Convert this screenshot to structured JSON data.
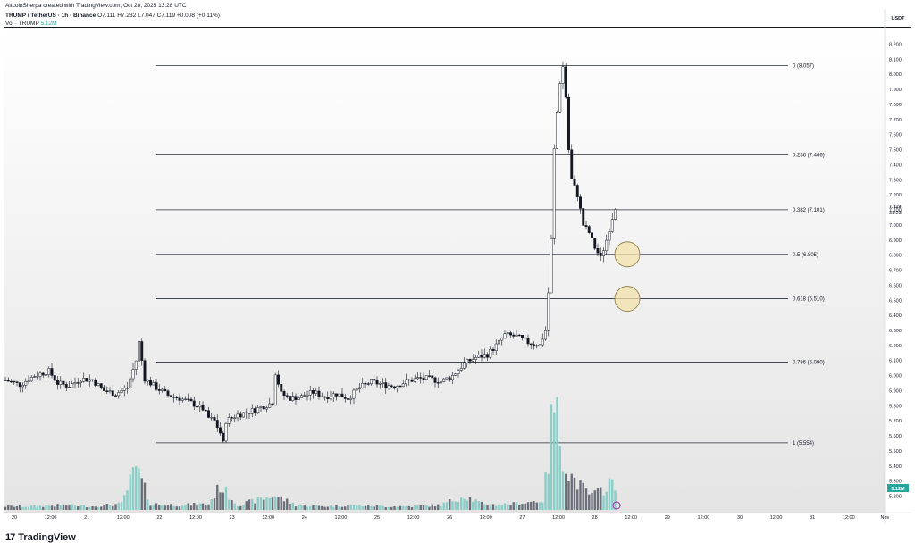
{
  "header": {
    "credit": "AltcoinSherpa created with TradingView.com, Oct 28, 2025 13:28 UTC",
    "symbol": "TRUMP / TetherUS · 1h · Binance",
    "ohlc": "O7.111  H7.232  L7.047  C7.119  +0.008 (+0.11%)",
    "vol_label": "Vol · TRUMP",
    "vol_value": "5.12M"
  },
  "footer": {
    "brand": "TradingView"
  },
  "chart_data": {
    "type": "candlestick",
    "currency_label": "USDT",
    "last_price_label": "7.119",
    "countdown_label": "31:23",
    "volume_tag": "5.12M",
    "y_ticks": [
      "8.200",
      "8.100",
      "8.000",
      "7.900",
      "7.800",
      "7.700",
      "7.600",
      "7.500",
      "7.400",
      "7.300",
      "7.200",
      "7.100",
      "7.000",
      "6.900",
      "6.800",
      "6.700",
      "6.600",
      "6.500",
      "6.400",
      "6.300",
      "6.200",
      "6.100",
      "6.000",
      "5.900",
      "5.800",
      "5.700",
      "5.600",
      "5.500",
      "5.400",
      "5.300",
      "5.200"
    ],
    "x_ticks": [
      "20",
      "12:00",
      "21",
      "12:00",
      "22",
      "12:00",
      "23",
      "12:00",
      "24",
      "12:00",
      "25",
      "12:00",
      "26",
      "12:00",
      "27",
      "12:00",
      "28",
      "12:00",
      "29",
      "12:00",
      "30",
      "12:00",
      "31",
      "12:00",
      "Nov"
    ],
    "ylim": [
      5.15,
      8.28
    ],
    "fib_levels": [
      {
        "label": "0 (8.057)",
        "value": 8.057
      },
      {
        "label": "0.236 (7.466)",
        "value": 7.466
      },
      {
        "label": "0.382 (7.101)",
        "value": 7.101
      },
      {
        "label": "0.5 (6.805)",
        "value": 6.805
      },
      {
        "label": "0.618 (6.510)",
        "value": 6.51
      },
      {
        "label": "0.786 (6.090)",
        "value": 6.09
      },
      {
        "label": "1 (5.554)",
        "value": 5.554
      }
    ],
    "highlight_levels": [
      6.805,
      6.51
    ],
    "price_path": [
      [
        0,
        5.97
      ],
      [
        5,
        5.94
      ],
      [
        10,
        6.0
      ],
      [
        15,
        6.03
      ],
      [
        18,
        5.95
      ],
      [
        22,
        5.93
      ],
      [
        26,
        5.98
      ],
      [
        30,
        5.97
      ],
      [
        34,
        5.9
      ],
      [
        38,
        5.88
      ],
      [
        42,
        5.92
      ],
      [
        45,
        6.1
      ],
      [
        46,
        6.22
      ],
      [
        48,
        5.98
      ],
      [
        52,
        5.92
      ],
      [
        56,
        5.87
      ],
      [
        60,
        5.85
      ],
      [
        64,
        5.82
      ],
      [
        68,
        5.78
      ],
      [
        70,
        5.72
      ],
      [
        72,
        5.7
      ],
      [
        74,
        5.62
      ],
      [
        75,
        5.55
      ],
      [
        76,
        5.7
      ],
      [
        80,
        5.74
      ],
      [
        84,
        5.76
      ],
      [
        88,
        5.79
      ],
      [
        92,
        5.82
      ],
      [
        93,
        6.02
      ],
      [
        95,
        5.88
      ],
      [
        98,
        5.85
      ],
      [
        102,
        5.86
      ],
      [
        106,
        5.89
      ],
      [
        110,
        5.86
      ],
      [
        114,
        5.88
      ],
      [
        118,
        5.85
      ],
      [
        122,
        5.92
      ],
      [
        126,
        5.96
      ],
      [
        130,
        5.94
      ],
      [
        134,
        5.93
      ],
      [
        138,
        5.96
      ],
      [
        142,
        5.98
      ],
      [
        146,
        5.98
      ],
      [
        150,
        5.96
      ],
      [
        154,
        6.0
      ],
      [
        156,
        6.04
      ],
      [
        158,
        6.08
      ],
      [
        162,
        6.12
      ],
      [
        166,
        6.14
      ],
      [
        170,
        6.22
      ],
      [
        172,
        6.27
      ],
      [
        176,
        6.26
      ],
      [
        180,
        6.22
      ],
      [
        184,
        6.2
      ],
      [
        186,
        6.3
      ],
      [
        187,
        6.55
      ],
      [
        188,
        6.9
      ],
      [
        189,
        7.5
      ],
      [
        190,
        7.75
      ],
      [
        191,
        7.95
      ],
      [
        192,
        8.05
      ],
      [
        193,
        7.85
      ],
      [
        194,
        7.5
      ],
      [
        195,
        7.3
      ],
      [
        197,
        7.2
      ],
      [
        199,
        7.0
      ],
      [
        201,
        6.95
      ],
      [
        203,
        6.85
      ],
      [
        205,
        6.78
      ],
      [
        207,
        6.9
      ],
      [
        209,
        7.05
      ],
      [
        210,
        7.12
      ]
    ],
    "volume_path": [
      [
        0,
        0.03
      ],
      [
        10,
        0.03
      ],
      [
        20,
        0.04
      ],
      [
        30,
        0.03
      ],
      [
        40,
        0.05
      ],
      [
        45,
        0.35
      ],
      [
        50,
        0.05
      ],
      [
        60,
        0.04
      ],
      [
        70,
        0.05
      ],
      [
        74,
        0.2
      ],
      [
        80,
        0.04
      ],
      [
        93,
        0.12
      ],
      [
        100,
        0.04
      ],
      [
        110,
        0.03
      ],
      [
        120,
        0.04
      ],
      [
        130,
        0.03
      ],
      [
        140,
        0.03
      ],
      [
        150,
        0.04
      ],
      [
        158,
        0.12
      ],
      [
        165,
        0.04
      ],
      [
        175,
        0.05
      ],
      [
        185,
        0.08
      ],
      [
        187,
        0.4
      ],
      [
        188,
        0.7
      ],
      [
        189,
        0.9
      ],
      [
        190,
        0.75
      ],
      [
        191,
        0.6
      ],
      [
        192,
        0.48
      ],
      [
        194,
        0.3
      ],
      [
        196,
        0.25
      ],
      [
        198,
        0.2
      ],
      [
        200,
        0.15
      ],
      [
        202,
        0.12
      ],
      [
        204,
        0.14
      ],
      [
        206,
        0.18
      ],
      [
        208,
        0.24
      ],
      [
        210,
        0.16
      ]
    ]
  }
}
